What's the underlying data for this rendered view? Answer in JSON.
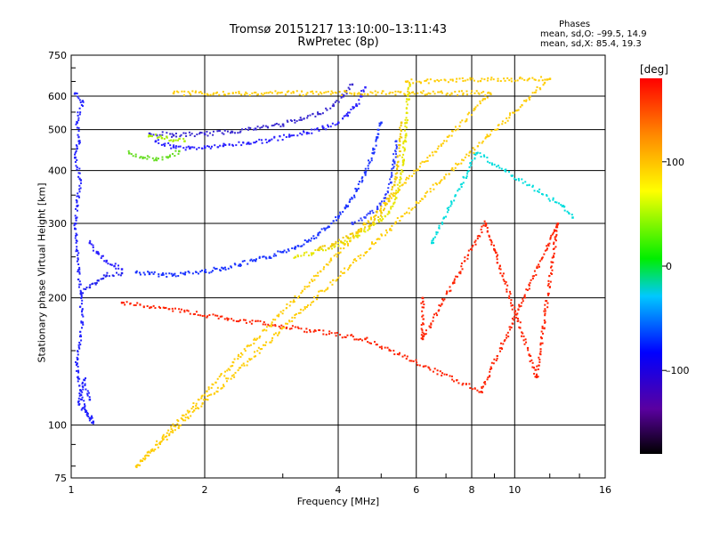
{
  "chart_data": {
    "type": "scatter",
    "title_line1": "Tromsø 20151217 13:10:00–13:11:43",
    "title_line2": "RwPretec (8p)",
    "stats": {
      "title": "Phases",
      "o_line": "mean, sd,O: –99.5, 14.9",
      "x_line": "mean, sd,X:  85.4, 19.3"
    },
    "xlabel": "Frequency [MHz]",
    "ylabel": "Stationary phase Virtual Height [km]",
    "x_scale": "log",
    "y_scale": "log",
    "xlim": [
      1,
      16
    ],
    "ylim": [
      75,
      750
    ],
    "x_ticks": [
      {
        "value": 1,
        "label": "1"
      },
      {
        "value": 2,
        "label": "2"
      },
      {
        "value": 4,
        "label": "4"
      },
      {
        "value": 6,
        "label": "6"
      },
      {
        "value": 8,
        "label": "8"
      },
      {
        "value": 10,
        "label": "10"
      },
      {
        "value": 16,
        "label": "16"
      }
    ],
    "y_ticks": [
      {
        "value": 75,
        "label": "75"
      },
      {
        "value": 100,
        "label": "100"
      },
      {
        "value": 200,
        "label": "200"
      },
      {
        "value": 300,
        "label": "300"
      },
      {
        "value": 400,
        "label": "400"
      },
      {
        "value": 500,
        "label": "500"
      },
      {
        "value": 600,
        "label": "600"
      },
      {
        "value": 750,
        "label": "750"
      }
    ],
    "grid": true,
    "colorbar": {
      "label": "[deg]",
      "range": [
        -180,
        180
      ],
      "ticks": [
        {
          "value": 100,
          "label": "100"
        },
        {
          "value": 0,
          "label": "0"
        },
        {
          "value": -100,
          "label": "–100"
        }
      ]
    },
    "traces": [
      {
        "color": "#1a33ff",
        "points": [
          [
            1.4,
            230
          ],
          [
            1.5,
            228
          ],
          [
            1.6,
            227
          ],
          [
            1.7,
            227
          ],
          [
            1.8,
            228
          ],
          [
            2.0,
            231
          ],
          [
            2.2,
            235
          ],
          [
            2.4,
            240
          ],
          [
            2.6,
            245
          ],
          [
            2.8,
            250
          ],
          [
            3.0,
            257
          ],
          [
            3.2,
            264
          ],
          [
            3.4,
            272
          ],
          [
            3.6,
            282
          ],
          [
            3.8,
            295
          ],
          [
            4.0,
            310
          ],
          [
            4.2,
            330
          ],
          [
            4.4,
            360
          ],
          [
            4.6,
            395
          ],
          [
            4.8,
            440
          ],
          [
            4.9,
            480
          ],
          [
            5.0,
            520
          ]
        ]
      },
      {
        "color": "#2a20ff",
        "points": [
          [
            1.55,
            470
          ],
          [
            1.7,
            455
          ],
          [
            1.85,
            452
          ],
          [
            2.0,
            454
          ],
          [
            2.2,
            458
          ],
          [
            2.5,
            465
          ],
          [
            2.8,
            472
          ],
          [
            3.1,
            482
          ],
          [
            3.4,
            492
          ],
          [
            3.7,
            505
          ],
          [
            4.0,
            520
          ],
          [
            4.2,
            540
          ],
          [
            4.4,
            570
          ],
          [
            4.5,
            600
          ],
          [
            4.6,
            630
          ]
        ]
      },
      {
        "color": "#3a2ad0",
        "points": [
          [
            1.5,
            490
          ],
          [
            1.7,
            485
          ],
          [
            2.0,
            488
          ],
          [
            2.3,
            495
          ],
          [
            2.6,
            503
          ],
          [
            3.0,
            515
          ],
          [
            3.3,
            528
          ],
          [
            3.6,
            545
          ],
          [
            3.9,
            570
          ],
          [
            4.1,
            600
          ],
          [
            4.3,
            640
          ]
        ]
      },
      {
        "color": "#2b1fff",
        "points": [
          [
            1.1,
            270
          ],
          [
            1.15,
            255
          ],
          [
            1.2,
            245
          ],
          [
            1.25,
            238
          ],
          [
            1.3,
            234
          ]
        ]
      },
      {
        "color": "#2222ee",
        "points": [
          [
            1.05,
            205
          ],
          [
            1.1,
            212
          ],
          [
            1.15,
            220
          ],
          [
            1.2,
            226
          ],
          [
            1.3,
            229
          ]
        ]
      },
      {
        "color": "#e6e600",
        "points": [
          [
            3.2,
            250
          ],
          [
            3.5,
            255
          ],
          [
            3.8,
            262
          ],
          [
            4.1,
            270
          ],
          [
            4.4,
            280
          ],
          [
            4.7,
            292
          ],
          [
            5.0,
            305
          ],
          [
            5.2,
            320
          ],
          [
            5.4,
            345
          ],
          [
            5.5,
            375
          ],
          [
            5.6,
            420
          ],
          [
            5.65,
            470
          ],
          [
            5.7,
            520
          ],
          [
            5.75,
            590
          ],
          [
            5.8,
            640
          ]
        ]
      },
      {
        "color": "#f0c800",
        "points": [
          [
            3.6,
            260
          ],
          [
            3.9,
            268
          ],
          [
            4.2,
            278
          ],
          [
            4.5,
            290
          ],
          [
            4.8,
            302
          ],
          [
            5.0,
            318
          ],
          [
            5.2,
            340
          ],
          [
            5.35,
            370
          ],
          [
            5.45,
            410
          ],
          [
            5.5,
            460
          ],
          [
            5.55,
            520
          ]
        ]
      },
      {
        "color": "#3040ff",
        "points": [
          [
            4.3,
            300
          ],
          [
            4.6,
            310
          ],
          [
            4.9,
            325
          ],
          [
            5.1,
            345
          ],
          [
            5.25,
            375
          ],
          [
            5.35,
            420
          ],
          [
            5.4,
            470
          ]
        ]
      },
      {
        "color": "#66dd22",
        "points": [
          [
            1.35,
            440
          ],
          [
            1.45,
            430
          ],
          [
            1.55,
            425
          ],
          [
            1.65,
            430
          ],
          [
            1.75,
            445
          ]
        ]
      },
      {
        "color": "#aaee00",
        "points": [
          [
            1.5,
            485
          ],
          [
            1.6,
            478
          ],
          [
            1.7,
            472
          ],
          [
            1.8,
            470
          ]
        ]
      },
      {
        "color": "#ff2200",
        "points": [
          [
            6.2,
            200
          ],
          [
            6.2,
            160
          ],
          [
            8.6,
            300
          ],
          [
            9.0,
            260
          ],
          [
            11.2,
            130
          ],
          [
            12.5,
            300
          ],
          [
            8.4,
            120
          ],
          [
            4.6,
            160
          ],
          [
            1.3,
            195
          ]
        ]
      },
      {
        "color": "#00dddd",
        "points": [
          [
            6.5,
            270
          ],
          [
            8.2,
            440
          ],
          [
            12.8,
            330
          ],
          [
            13.5,
            310
          ]
        ]
      },
      {
        "color": "#ffcc00",
        "points": [
          [
            5.7,
            650
          ],
          [
            12.0,
            660
          ],
          [
            1.4,
            80
          ],
          [
            8.8,
            610
          ],
          [
            1.7,
            610
          ]
        ]
      },
      {
        "color": "#2222ff",
        "points": [
          [
            1.02,
            610
          ],
          [
            1.06,
            585
          ],
          [
            1.03,
            520
          ],
          [
            1.04,
            470
          ],
          [
            1.02,
            430
          ],
          [
            1.05,
            380
          ],
          [
            1.03,
            330
          ],
          [
            1.02,
            300
          ],
          [
            1.06,
            175
          ],
          [
            1.03,
            140
          ],
          [
            1.05,
            118
          ],
          [
            1.08,
            108
          ],
          [
            1.1,
            104
          ],
          [
            1.12,
            102
          ],
          [
            1.04,
            112
          ],
          [
            1.07,
            128
          ],
          [
            1.1,
            115
          ]
        ]
      }
    ]
  }
}
